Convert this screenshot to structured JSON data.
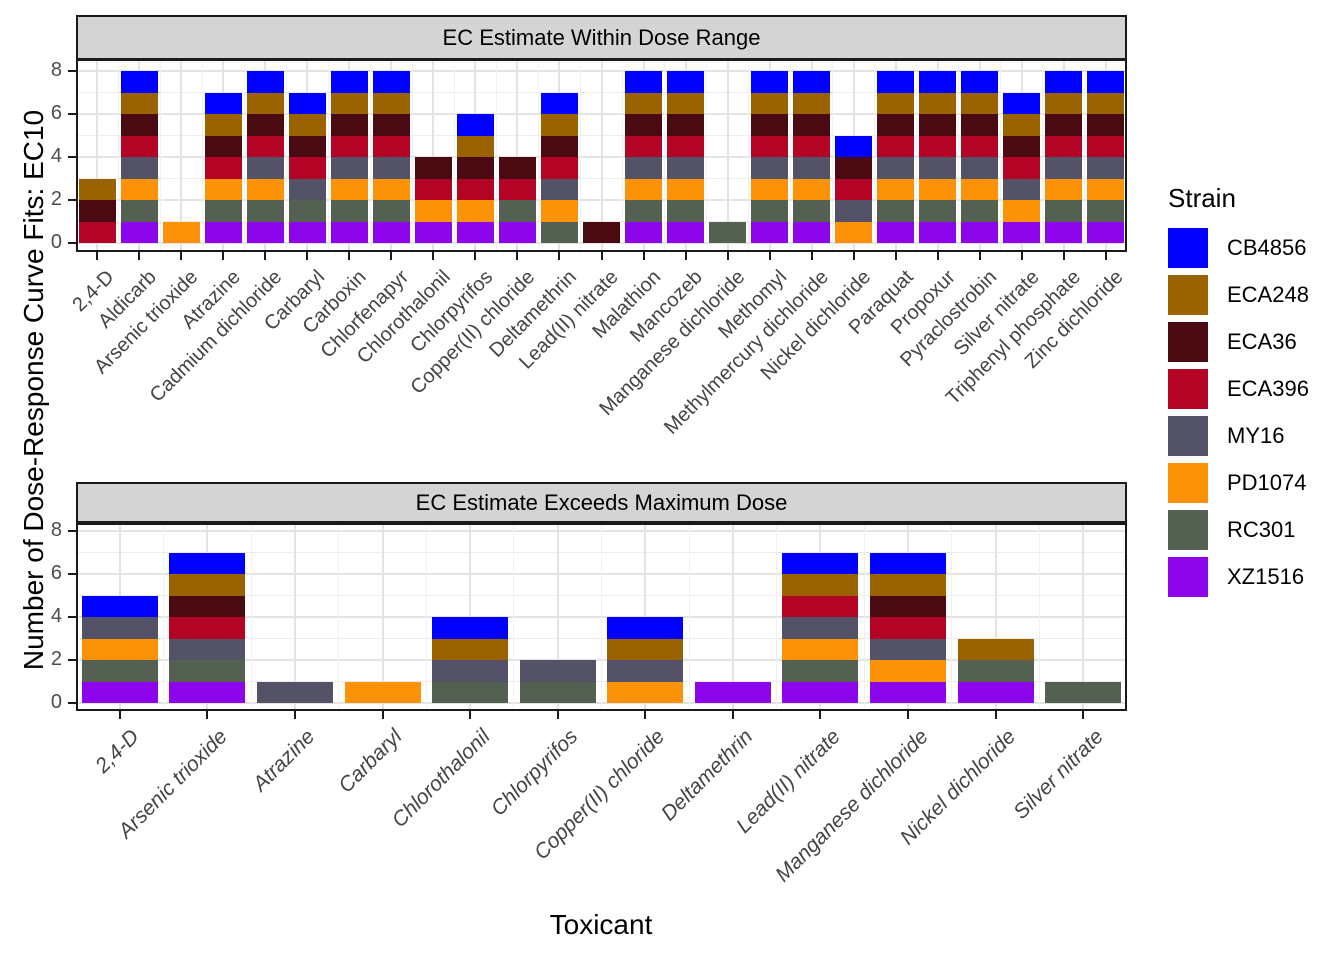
{
  "axes": {
    "y_title": "Number of Dose-Response Curve Fits: EC10",
    "x_title": "Toxicant",
    "y_ticks": [
      0,
      2,
      4,
      6,
      8
    ]
  },
  "legend": {
    "title": "Strain",
    "entries": [
      {
        "label": "CB4856",
        "color": "#0000FF"
      },
      {
        "label": "ECA248",
        "color": "#9A6300"
      },
      {
        "label": "ECA36",
        "color": "#4A0A12"
      },
      {
        "label": "ECA396",
        "color": "#B30426"
      },
      {
        "label": "MY16",
        "color": "#545266"
      },
      {
        "label": "PD1074",
        "color": "#FB9207"
      },
      {
        "label": "RC301",
        "color": "#546052"
      },
      {
        "label": "XZ1516",
        "color": "#8D05EA"
      }
    ]
  },
  "strain_colors": {
    "CB4856": "#0000FF",
    "ECA248": "#9A6300",
    "ECA36": "#4A0A12",
    "ECA396": "#B30426",
    "MY16": "#545266",
    "PD1074": "#FB9207",
    "RC301": "#546052",
    "XZ1516": "#8D05EA"
  },
  "stack_order_bottom_to_top": [
    "XZ1516",
    "RC301",
    "PD1074",
    "MY16",
    "ECA396",
    "ECA36",
    "ECA248",
    "CB4856"
  ],
  "chart_data": [
    {
      "type": "bar",
      "stacked": true,
      "segment_value": 1,
      "title": "EC Estimate Within Dose Range",
      "xlabel": "Toxicant",
      "ylabel": "Number of Dose-Response Curve Fits: EC10",
      "ylim": [
        0,
        8.4
      ],
      "yticks": [
        0,
        2,
        4,
        6,
        8
      ],
      "grid": true,
      "legend_position": "right",
      "categories": [
        "2,4-D",
        "Aldicarb",
        "Arsenic trioxide",
        "Atrazine",
        "Cadmium dichloride",
        "Carbaryl",
        "Carboxin",
        "Chlorfenapyr",
        "Chlorothalonil",
        "Chlorpyrifos",
        "Copper(II) chloride",
        "Deltamethrin",
        "Lead(II) nitrate",
        "Malathion",
        "Mancozeb",
        "Manganese dichloride",
        "Methomyl",
        "Methylmercury dichloride",
        "Nickel dichloride",
        "Paraquat",
        "Propoxur",
        "Pyraclostrobin",
        "Silver nitrate",
        "Triphenyl phosphate",
        "Zinc dichloride"
      ],
      "totals": [
        3,
        8,
        1,
        7,
        8,
        7,
        8,
        8,
        4,
        6,
        4,
        7,
        1,
        8,
        8,
        1,
        8,
        8,
        5,
        8,
        8,
        8,
        7,
        8,
        8
      ],
      "stacks": [
        [
          "ECA396",
          "ECA36",
          "ECA248"
        ],
        [
          "XZ1516",
          "RC301",
          "PD1074",
          "MY16",
          "ECA396",
          "ECA36",
          "ECA248",
          "CB4856"
        ],
        [
          "PD1074"
        ],
        [
          "XZ1516",
          "RC301",
          "PD1074",
          "ECA396",
          "ECA36",
          "ECA248",
          "CB4856"
        ],
        [
          "XZ1516",
          "RC301",
          "PD1074",
          "MY16",
          "ECA396",
          "ECA36",
          "ECA248",
          "CB4856"
        ],
        [
          "XZ1516",
          "RC301",
          "MY16",
          "ECA396",
          "ECA36",
          "ECA248",
          "CB4856"
        ],
        [
          "XZ1516",
          "RC301",
          "PD1074",
          "MY16",
          "ECA396",
          "ECA36",
          "ECA248",
          "CB4856"
        ],
        [
          "XZ1516",
          "RC301",
          "PD1074",
          "MY16",
          "ECA396",
          "ECA36",
          "ECA248",
          "CB4856"
        ],
        [
          "XZ1516",
          "PD1074",
          "ECA396",
          "ECA36"
        ],
        [
          "XZ1516",
          "PD1074",
          "ECA396",
          "ECA36",
          "ECA248",
          "CB4856"
        ],
        [
          "XZ1516",
          "RC301",
          "ECA396",
          "ECA36"
        ],
        [
          "RC301",
          "PD1074",
          "MY16",
          "ECA396",
          "ECA36",
          "ECA248",
          "CB4856"
        ],
        [
          "ECA36"
        ],
        [
          "XZ1516",
          "RC301",
          "PD1074",
          "MY16",
          "ECA396",
          "ECA36",
          "ECA248",
          "CB4856"
        ],
        [
          "XZ1516",
          "RC301",
          "PD1074",
          "MY16",
          "ECA396",
          "ECA36",
          "ECA248",
          "CB4856"
        ],
        [
          "RC301"
        ],
        [
          "XZ1516",
          "RC301",
          "PD1074",
          "MY16",
          "ECA396",
          "ECA36",
          "ECA248",
          "CB4856"
        ],
        [
          "XZ1516",
          "RC301",
          "PD1074",
          "MY16",
          "ECA396",
          "ECA36",
          "ECA248",
          "CB4856"
        ],
        [
          "PD1074",
          "MY16",
          "ECA396",
          "ECA36",
          "CB4856"
        ],
        [
          "XZ1516",
          "RC301",
          "PD1074",
          "MY16",
          "ECA396",
          "ECA36",
          "ECA248",
          "CB4856"
        ],
        [
          "XZ1516",
          "RC301",
          "PD1074",
          "MY16",
          "ECA396",
          "ECA36",
          "ECA248",
          "CB4856"
        ],
        [
          "XZ1516",
          "RC301",
          "PD1074",
          "MY16",
          "ECA396",
          "ECA36",
          "ECA248",
          "CB4856"
        ],
        [
          "XZ1516",
          "PD1074",
          "MY16",
          "ECA396",
          "ECA36",
          "ECA248",
          "CB4856"
        ],
        [
          "XZ1516",
          "RC301",
          "PD1074",
          "MY16",
          "ECA396",
          "ECA36",
          "ECA248",
          "CB4856"
        ],
        [
          "XZ1516",
          "RC301",
          "PD1074",
          "MY16",
          "ECA396",
          "ECA36",
          "ECA248",
          "CB4856"
        ]
      ]
    },
    {
      "type": "bar",
      "stacked": true,
      "segment_value": 1,
      "title": "EC Estimate Exceeds Maximum Dose",
      "xlabel": "Toxicant",
      "ylabel": "Number of Dose-Response Curve Fits: EC10",
      "ylim": [
        0,
        8.4
      ],
      "yticks": [
        0,
        2,
        4,
        6,
        8
      ],
      "grid": true,
      "legend_position": "right",
      "categories": [
        "2,4-D",
        "Arsenic trioxide",
        "Atrazine",
        "Carbaryl",
        "Chlorothalonil",
        "Chlorpyrifos",
        "Copper(II) chloride",
        "Deltamethrin",
        "Lead(II) nitrate",
        "Manganese dichloride",
        "Nickel dichloride",
        "Silver nitrate"
      ],
      "totals": [
        5,
        7,
        1,
        1,
        4,
        2,
        4,
        1,
        7,
        7,
        3,
        1
      ],
      "stacks": [
        [
          "XZ1516",
          "RC301",
          "PD1074",
          "MY16",
          "CB4856"
        ],
        [
          "XZ1516",
          "RC301",
          "MY16",
          "ECA396",
          "ECA36",
          "ECA248",
          "CB4856"
        ],
        [
          "MY16"
        ],
        [
          "PD1074"
        ],
        [
          "RC301",
          "MY16",
          "ECA248",
          "CB4856"
        ],
        [
          "RC301",
          "MY16"
        ],
        [
          "PD1074",
          "MY16",
          "ECA248",
          "CB4856"
        ],
        [
          "XZ1516"
        ],
        [
          "XZ1516",
          "RC301",
          "PD1074",
          "MY16",
          "ECA396",
          "ECA248",
          "CB4856"
        ],
        [
          "XZ1516",
          "PD1074",
          "MY16",
          "ECA396",
          "ECA36",
          "ECA248",
          "CB4856"
        ],
        [
          "XZ1516",
          "RC301",
          "ECA248"
        ],
        [
          "RC301"
        ]
      ]
    }
  ]
}
